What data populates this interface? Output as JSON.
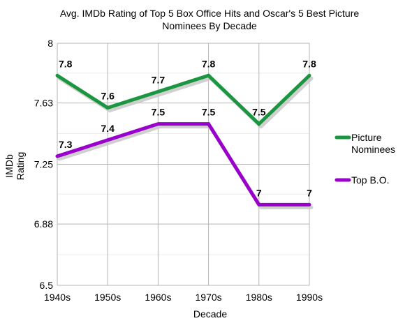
{
  "chart_data": {
    "type": "line",
    "title_line1": "Avg. IMDb Rating of Top 5 Box Office Hits and Oscar's 5 Best Picture",
    "title_line2": "Nominees By Decade",
    "xlabel": "Decade",
    "ylabel_line1": "IMDb",
    "ylabel_line2": "Rating",
    "categories": [
      "1940s",
      "1950s",
      "1960s",
      "1970s",
      "1980s",
      "1990s"
    ],
    "y_ticks": [
      "8",
      "7.63",
      "7.25",
      "6.88",
      "6.5"
    ],
    "y_tick_values": [
      8,
      7.63,
      7.25,
      6.88,
      6.5
    ],
    "ylim": [
      6.5,
      8
    ],
    "grid": true,
    "legend_position": "right",
    "series": [
      {
        "name": "Picture Nominees",
        "name_line1": "Picture",
        "name_line2": "Nominees",
        "color": "#1a9640",
        "values": [
          7.8,
          7.6,
          7.7,
          7.8,
          7.5,
          7.8
        ],
        "labels": [
          "7.8",
          "7.6",
          "7.7",
          "7.8",
          "7.5",
          "7.8"
        ]
      },
      {
        "name": "Top B.O.",
        "color": "#9900cc",
        "values": [
          7.3,
          7.4,
          7.5,
          7.5,
          7.0,
          7.0
        ],
        "labels": [
          "7.3",
          "7.4",
          "7.5",
          "7.5",
          "7",
          "7"
        ]
      }
    ]
  }
}
